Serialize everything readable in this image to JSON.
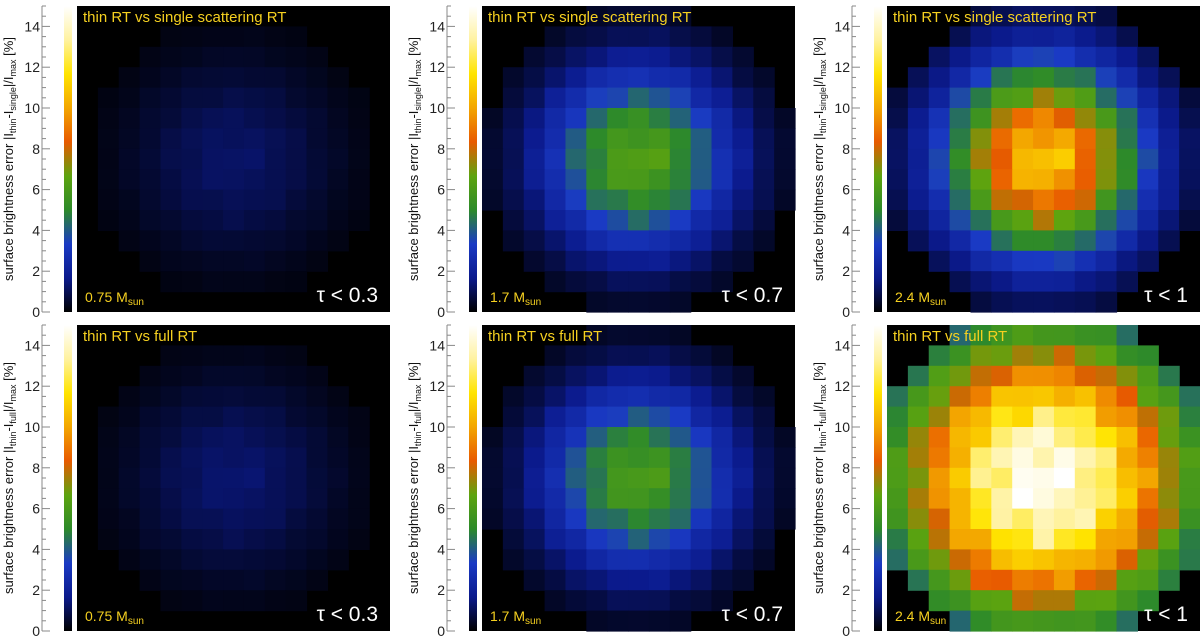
{
  "figure": {
    "colorscale": [
      "#000000",
      "#0b1a8c",
      "#1a3ac4",
      "#2d8a2a",
      "#5da40f",
      "#e85a00",
      "#f3a600",
      "#ffe400",
      "#fff2a0",
      "#ffffff"
    ]
  },
  "chart_data": [
    {
      "type": "heatmap",
      "title": "thin RT  vs  single scattering RT",
      "mass_label": "0.75 M",
      "mass_sub": "sun",
      "tau_label": "τ < 0.3",
      "colorbar_ticks": [
        "0",
        "2",
        "4",
        "6",
        "8",
        "10",
        "12",
        "14"
      ],
      "ylabel": "surface brightness error |I",
      "ylabel_sub1": "thin",
      "ylabel_mid": "-I",
      "ylabel_sub2": "single",
      "ylabel_end": "|/I",
      "ylabel_sub3": "max",
      "ylabel_unit": " [%]",
      "clim": [
        0,
        15
      ],
      "grid_size": 15,
      "center": [
        7.0,
        7.0
      ],
      "peak": 1.2,
      "sigma": 3.6,
      "edge_cut": 6.8
    },
    {
      "type": "heatmap",
      "title": "thin RT  vs  single scattering RT",
      "mass_label": "1.7 M",
      "mass_sub": "sun",
      "tau_label": "τ < 0.7",
      "colorbar_ticks": [
        "0",
        "2",
        "4",
        "6",
        "8",
        "10",
        "12",
        "14"
      ],
      "ylabel": "surface brightness error |I",
      "ylabel_sub1": "thin",
      "ylabel_mid": "-I",
      "ylabel_sub2": "single",
      "ylabel_end": "|/I",
      "ylabel_sub3": "max",
      "ylabel_unit": " [%]",
      "clim": [
        0,
        15
      ],
      "grid_size": 15,
      "center": [
        7.0,
        7.0
      ],
      "peak": 6.3,
      "sigma": 3.2,
      "edge_cut": 7.6
    },
    {
      "type": "heatmap",
      "title": "thin RT  vs  single scattering RT",
      "mass_label": "2.4 M",
      "mass_sub": "sun",
      "tau_label": "τ < 1",
      "colorbar_ticks": [
        "0",
        "2",
        "4",
        "6",
        "8",
        "10",
        "12",
        "14"
      ],
      "ylabel": "surface brightness error |I",
      "ylabel_sub1": "thin",
      "ylabel_mid": "-I",
      "ylabel_sub2": "single",
      "ylabel_end": "|/I",
      "ylabel_sub3": "max",
      "ylabel_unit": " [%]",
      "clim": [
        0,
        15
      ],
      "grid_size": 15,
      "center": [
        7.0,
        7.0
      ],
      "peak": 10.8,
      "sigma": 3.3,
      "edge_cut": 7.8
    },
    {
      "type": "heatmap",
      "title": "thin RT  vs  full RT",
      "mass_label": "0.75 M",
      "mass_sub": "sun",
      "tau_label": "τ < 0.3",
      "colorbar_ticks": [
        "0",
        "2",
        "4",
        "6",
        "8",
        "10",
        "12",
        "14"
      ],
      "ylabel": "surface brightness error |I",
      "ylabel_sub1": "thin",
      "ylabel_mid": "-I",
      "ylabel_sub2": "full",
      "ylabel_end": "|/I",
      "ylabel_sub3": "max",
      "ylabel_unit": " [%]",
      "clim": [
        0,
        15
      ],
      "grid_size": 15,
      "center": [
        7.0,
        7.0
      ],
      "peak": 1.3,
      "sigma": 3.6,
      "edge_cut": 6.8
    },
    {
      "type": "heatmap",
      "title": "thin RT  vs  full RT",
      "mass_label": "1.7 M",
      "mass_sub": "sun",
      "tau_label": "τ < 0.7",
      "colorbar_ticks": [
        "0",
        "2",
        "4",
        "6",
        "8",
        "10",
        "12",
        "14"
      ],
      "ylabel": "surface brightness error |I",
      "ylabel_sub1": "thin",
      "ylabel_mid": "-I",
      "ylabel_sub2": "full",
      "ylabel_end": "|/I",
      "ylabel_sub3": "max",
      "ylabel_unit": " [%]",
      "clim": [
        0,
        15
      ],
      "grid_size": 15,
      "center": [
        7.0,
        7.0
      ],
      "peak": 6.0,
      "sigma": 3.2,
      "edge_cut": 7.6
    },
    {
      "type": "heatmap",
      "title": "thin RT  vs  full RT",
      "mass_label": "2.4 M",
      "mass_sub": "sun",
      "tau_label": "τ < 1",
      "colorbar_ticks": [
        "0",
        "2",
        "4",
        "6",
        "8",
        "10",
        "12",
        "14"
      ],
      "ylabel": "surface brightness error |I",
      "ylabel_sub1": "thin",
      "ylabel_mid": "-I",
      "ylabel_sub2": "full",
      "ylabel_end": "|/I",
      "ylabel_sub3": "max",
      "ylabel_unit": " [%]",
      "clim": [
        0,
        15
      ],
      "grid_size": 15,
      "center": [
        7.0,
        7.0
      ],
      "peak": 14.8,
      "sigma": 5.2,
      "edge_cut": 8.1
    }
  ]
}
